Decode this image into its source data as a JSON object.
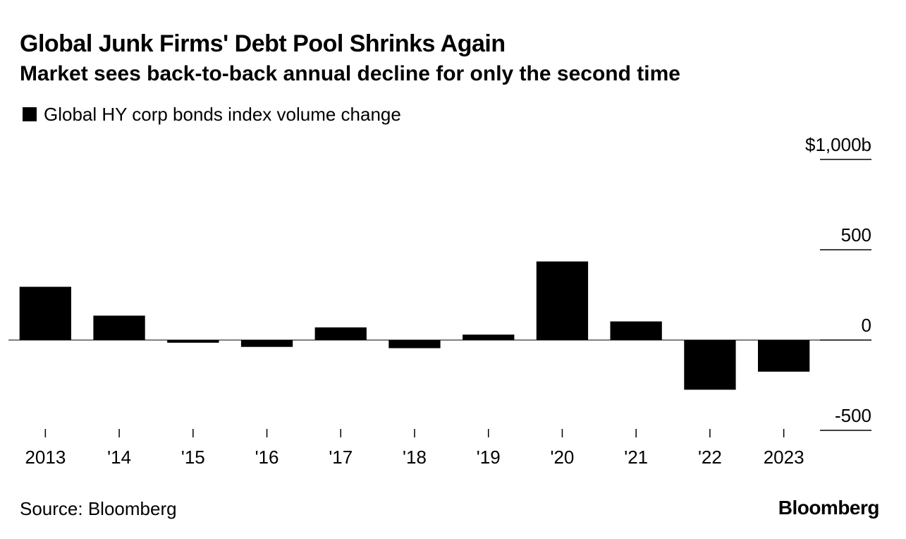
{
  "chart_data": {
    "type": "bar",
    "title": "Global Junk Firms' Debt Pool Shrinks Again",
    "subtitle": "Market sees back-to-back annual decline for only the second time",
    "legend": [
      "Global HY corp bonds index volume change"
    ],
    "categories": [
      "2013",
      "'14",
      "'15",
      "'16",
      "'17",
      "'18",
      "'19",
      "'20",
      "'21",
      "'22",
      "2023"
    ],
    "series": [
      {
        "name": "Global HY corp bonds index volume change",
        "values": [
          295,
          135,
          -15,
          -38,
          70,
          -45,
          30,
          435,
          103,
          -275,
          -175
        ]
      }
    ],
    "ylim": [
      -500,
      1000
    ],
    "yticks": [
      1000,
      500,
      0,
      -500
    ],
    "ytick_labels": [
      "$1,000b",
      "500",
      "0",
      "-500"
    ],
    "xlabel": "",
    "ylabel": "",
    "grid": false,
    "color": "#000000"
  },
  "footer": {
    "source": "Source: Bloomberg",
    "brand": "Bloomberg"
  }
}
